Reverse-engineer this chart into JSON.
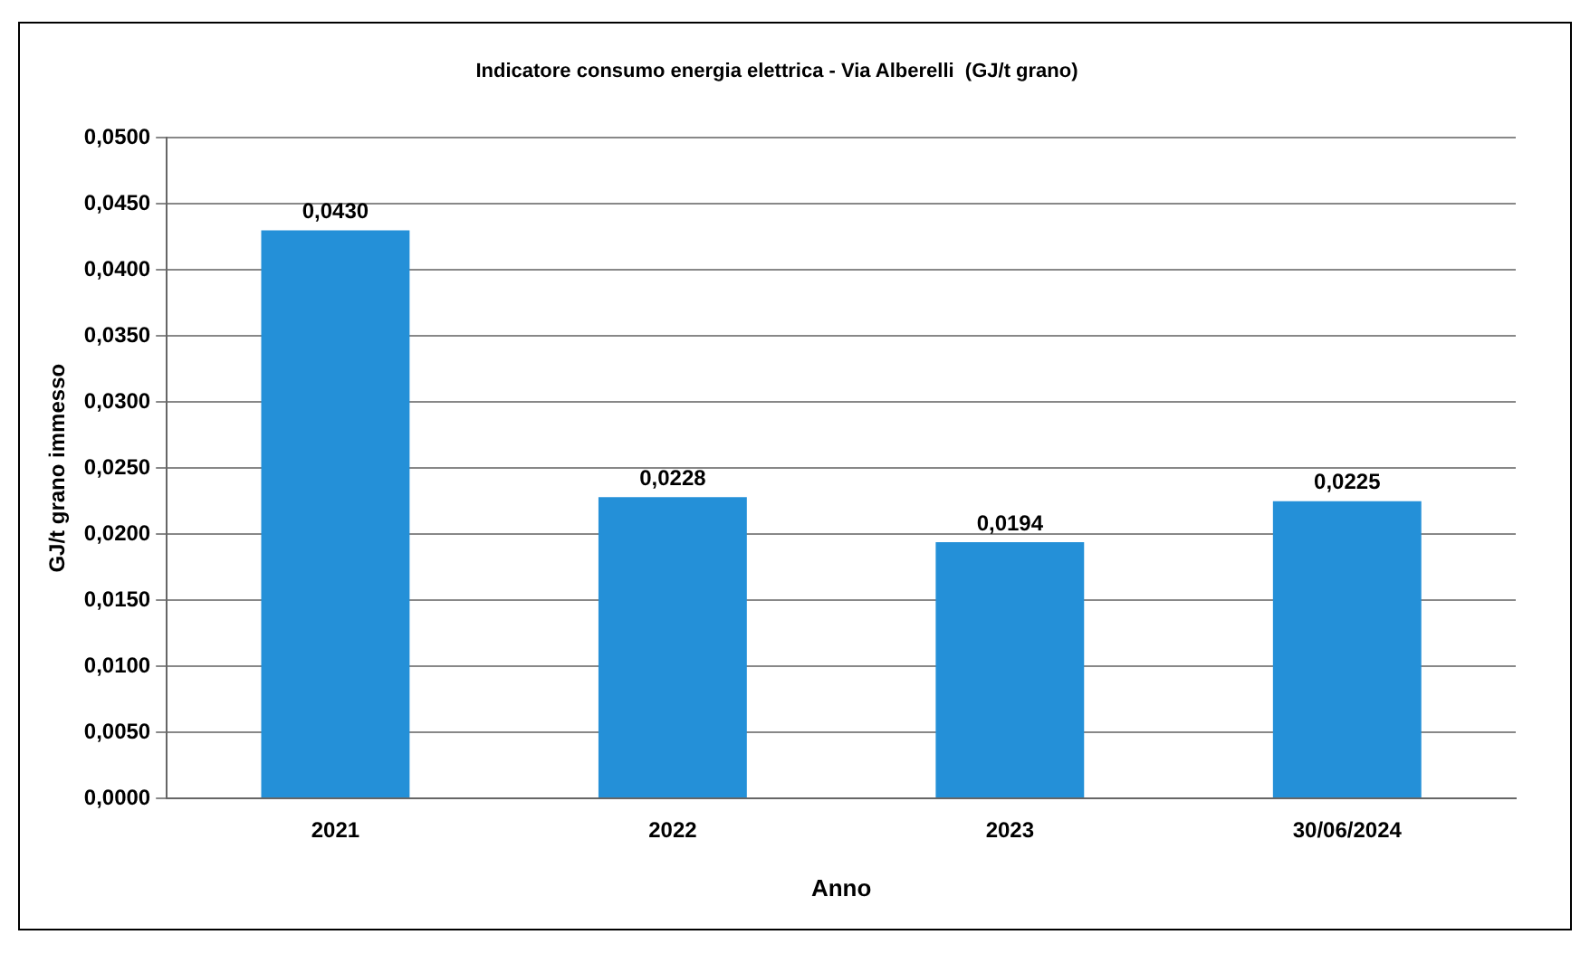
{
  "chart_data": {
    "type": "bar",
    "title": "Indicatore consumo energia elettrica - Via Alberelli  (GJ/t grano)",
    "xlabel": "Anno",
    "ylabel": "GJ/t grano immesso",
    "categories": [
      "2021",
      "2022",
      "2023",
      "30/06/2024"
    ],
    "values": [
      0.043,
      0.0228,
      0.0194,
      0.0225
    ],
    "value_labels": [
      "0,0430",
      "0,0228",
      "0,0194",
      "0,0225"
    ],
    "color": "#2490d8",
    "ylim": [
      0,
      0.05
    ],
    "yticks": [
      {
        "value": 0,
        "label": "0,0000"
      },
      {
        "value": 0.005,
        "label": "0,0050"
      },
      {
        "value": 0.01,
        "label": "0,0100"
      },
      {
        "value": 0.015,
        "label": "0,0150"
      },
      {
        "value": 0.02,
        "label": "0,0200"
      },
      {
        "value": 0.025,
        "label": "0,0250"
      },
      {
        "value": 0.03,
        "label": "0,0300"
      },
      {
        "value": 0.035,
        "label": "0,0350"
      },
      {
        "value": 0.04,
        "label": "0,0400"
      },
      {
        "value": 0.045,
        "label": "0,0450"
      },
      {
        "value": 0.05,
        "label": "0,0500"
      }
    ],
    "grid": "y",
    "legend": false
  }
}
